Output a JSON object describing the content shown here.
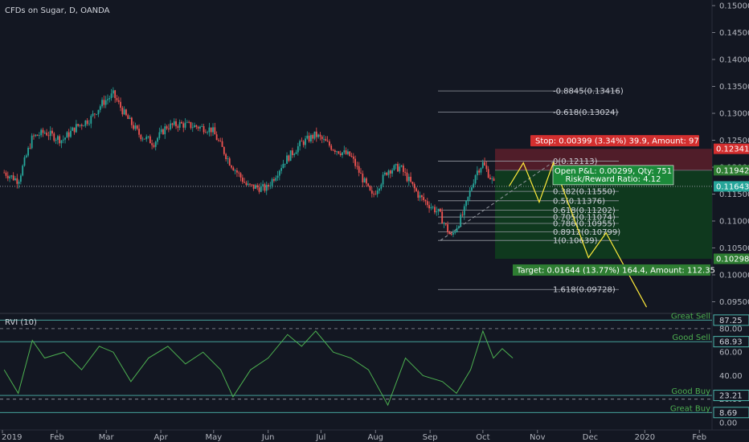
{
  "header": {
    "title": "CFDs on Sugar, D, OANDA"
  },
  "indicator": {
    "title": "RVI (10)"
  },
  "colors": {
    "background": "#131722",
    "candle_up": "#26a69a",
    "candle_down": "#ef5350",
    "projection": "#ffeb3b",
    "rvi": "#4caf50",
    "stop_zone": "#5c1e2a",
    "target_zone": "#0f3d1e",
    "stop_badge": "#d32f2f",
    "target_badge": "#2e7d32"
  },
  "price_axis": {
    "ticks": [
      "0.15000",
      "0.14500",
      "0.14000",
      "0.13500",
      "0.13000",
      "0.12500",
      "0.12000",
      "0.11500",
      "0.11000",
      "0.10500",
      "0.10000",
      "0.09500"
    ],
    "tick_values": [
      0.15,
      0.145,
      0.14,
      0.135,
      0.13,
      0.125,
      0.12,
      0.115,
      0.11,
      0.105,
      0.1,
      0.095
    ],
    "badges": [
      {
        "text": "0.12341",
        "value": 0.12341,
        "color": "#d32f2f"
      },
      {
        "text": "0.11942",
        "value": 0.11942,
        "color": "#2e7d32"
      },
      {
        "text": "0.11643",
        "value": 0.11643,
        "color": "#26a69a"
      },
      {
        "text": "0.10298",
        "value": 0.10298,
        "color": "#2e7d32"
      }
    ]
  },
  "rvi_axis": {
    "ticks": [
      "80.00",
      "60.00",
      "40.00",
      "20.00",
      "0.00"
    ],
    "tick_values": [
      80,
      60,
      40,
      20,
      0
    ],
    "badges": [
      {
        "text": "87.25",
        "value": 87.25
      },
      {
        "text": "68.93",
        "value": 68.93
      },
      {
        "text": "23.21",
        "value": 23.21
      },
      {
        "text": "8.69",
        "value": 8.69
      }
    ],
    "zone_labels": [
      {
        "text": "Great Sell",
        "value": 87.25
      },
      {
        "text": "Good Sell",
        "value": 68.93
      },
      {
        "text": "Good Buy",
        "value": 23.21
      },
      {
        "text": "Great Buy",
        "value": 8.69
      }
    ]
  },
  "time_axis": {
    "labels": [
      "2019",
      "Feb",
      "Mar",
      "Apr",
      "May",
      "Jun",
      "Jul",
      "Aug",
      "Sep",
      "Oct",
      "Nov",
      "Dec",
      "2020",
      "Feb"
    ],
    "days": [
      0,
      31,
      59,
      90,
      120,
      151,
      181,
      212,
      243,
      273,
      304,
      334,
      365,
      396
    ]
  },
  "fibonacci": {
    "levels": [
      {
        "text": "-0.8845(0.13416)",
        "value": 0.13416
      },
      {
        "text": "-0.618(0.13024)",
        "value": 0.13024
      },
      {
        "text": "0(0.12113)",
        "value": 0.12113
      },
      {
        "text": "0.382(0.11550)",
        "value": 0.1155
      },
      {
        "text": "0.5(0.11376)",
        "value": 0.11376
      },
      {
        "text": "0.618(0.11202)",
        "value": 0.11202
      },
      {
        "text": "0.705(0.11074)",
        "value": 0.11074
      },
      {
        "text": "0.786(0.10955)",
        "value": 0.10955
      },
      {
        "text": "0.8912(0.10799)",
        "value": 0.10799
      },
      {
        "text": "1(0.10639)",
        "value": 0.10639
      },
      {
        "text": "1.618(0.09728)",
        "value": 0.09728
      }
    ]
  },
  "position": {
    "stop_label": "Stop: 0.00399 (3.34%) 39.9, Amount: 97",
    "pnl_line1": "Open P&L: 0.00299, Qty: 751",
    "pnl_line2": "Risk/Reward Ratio: 4.12",
    "target_label": "Target: 0.01644 (13.77%) 164.4, Amount: 112.35",
    "entry": 0.11942,
    "stop": 0.12341,
    "target": 0.10298
  },
  "chart_data": {
    "type": "candlestick",
    "title": "CFDs on Sugar, D, OANDA",
    "close_path": [
      {
        "date": "2019-01-02",
        "close": 0.119
      },
      {
        "date": "2019-01-10",
        "close": 0.1175
      },
      {
        "date": "2019-01-18",
        "close": 0.1255
      },
      {
        "date": "2019-01-25",
        "close": 0.1265
      },
      {
        "date": "2019-02-04",
        "close": 0.125
      },
      {
        "date": "2019-02-12",
        "close": 0.1275
      },
      {
        "date": "2019-02-20",
        "close": 0.129
      },
      {
        "date": "2019-02-27",
        "close": 0.132
      },
      {
        "date": "2019-03-05",
        "close": 0.1335
      },
      {
        "date": "2019-03-12",
        "close": 0.1295
      },
      {
        "date": "2019-03-20",
        "close": 0.126
      },
      {
        "date": "2019-03-28",
        "close": 0.1245
      },
      {
        "date": "2019-04-04",
        "close": 0.1275
      },
      {
        "date": "2019-04-12",
        "close": 0.128
      },
      {
        "date": "2019-04-22",
        "close": 0.1275
      },
      {
        "date": "2019-04-30",
        "close": 0.127
      },
      {
        "date": "2019-05-10",
        "close": 0.121
      },
      {
        "date": "2019-05-20",
        "close": 0.1165
      },
      {
        "date": "2019-05-31",
        "close": 0.116
      },
      {
        "date": "2019-06-10",
        "close": 0.121
      },
      {
        "date": "2019-06-20",
        "close": 0.1245
      },
      {
        "date": "2019-06-28",
        "close": 0.126
      },
      {
        "date": "2019-07-08",
        "close": 0.1235
      },
      {
        "date": "2019-07-18",
        "close": 0.122
      },
      {
        "date": "2019-07-30",
        "close": 0.1145
      },
      {
        "date": "2019-08-08",
        "close": 0.1195
      },
      {
        "date": "2019-08-15",
        "close": 0.12
      },
      {
        "date": "2019-08-26",
        "close": 0.1145
      },
      {
        "date": "2019-09-06",
        "close": 0.1115
      },
      {
        "date": "2019-09-13",
        "close": 0.107
      },
      {
        "date": "2019-09-20",
        "close": 0.1115
      },
      {
        "date": "2019-09-27",
        "close": 0.119
      },
      {
        "date": "2019-10-01",
        "close": 0.1207
      },
      {
        "date": "2019-10-08",
        "close": 0.1164
      }
    ],
    "projection_path": [
      {
        "date": "2019-10-16",
        "price": 0.1165
      },
      {
        "date": "2019-10-24",
        "price": 0.1208
      },
      {
        "date": "2019-11-02",
        "price": 0.1135
      },
      {
        "date": "2019-11-10",
        "price": 0.1208
      },
      {
        "date": "2019-11-30",
        "price": 0.1032
      },
      {
        "date": "2019-12-10",
        "price": 0.1078
      },
      {
        "date": "2020-01-02",
        "price": 0.094
      }
    ],
    "rvi_series": [
      {
        "date": "2019-01-02",
        "value": 45
      },
      {
        "date": "2019-01-10",
        "value": 25
      },
      {
        "date": "2019-01-18",
        "value": 70
      },
      {
        "date": "2019-01-25",
        "value": 55
      },
      {
        "date": "2019-02-05",
        "value": 60
      },
      {
        "date": "2019-02-15",
        "value": 45
      },
      {
        "date": "2019-02-25",
        "value": 65
      },
      {
        "date": "2019-03-05",
        "value": 60
      },
      {
        "date": "2019-03-15",
        "value": 35
      },
      {
        "date": "2019-03-25",
        "value": 55
      },
      {
        "date": "2019-04-05",
        "value": 65
      },
      {
        "date": "2019-04-15",
        "value": 50
      },
      {
        "date": "2019-04-25",
        "value": 60
      },
      {
        "date": "2019-05-05",
        "value": 45
      },
      {
        "date": "2019-05-12",
        "value": 22
      },
      {
        "date": "2019-05-22",
        "value": 45
      },
      {
        "date": "2019-06-01",
        "value": 55
      },
      {
        "date": "2019-06-12",
        "value": 75
      },
      {
        "date": "2019-06-20",
        "value": 65
      },
      {
        "date": "2019-06-28",
        "value": 78
      },
      {
        "date": "2019-07-08",
        "value": 60
      },
      {
        "date": "2019-07-18",
        "value": 55
      },
      {
        "date": "2019-07-28",
        "value": 45
      },
      {
        "date": "2019-08-08",
        "value": 15
      },
      {
        "date": "2019-08-18",
        "value": 55
      },
      {
        "date": "2019-08-28",
        "value": 40
      },
      {
        "date": "2019-09-08",
        "value": 35
      },
      {
        "date": "2019-09-16",
        "value": 25
      },
      {
        "date": "2019-09-24",
        "value": 45
      },
      {
        "date": "2019-10-01",
        "value": 78
      },
      {
        "date": "2019-10-07",
        "value": 55
      },
      {
        "date": "2019-10-12",
        "value": 63
      },
      {
        "date": "2019-10-18",
        "value": 55
      }
    ]
  }
}
